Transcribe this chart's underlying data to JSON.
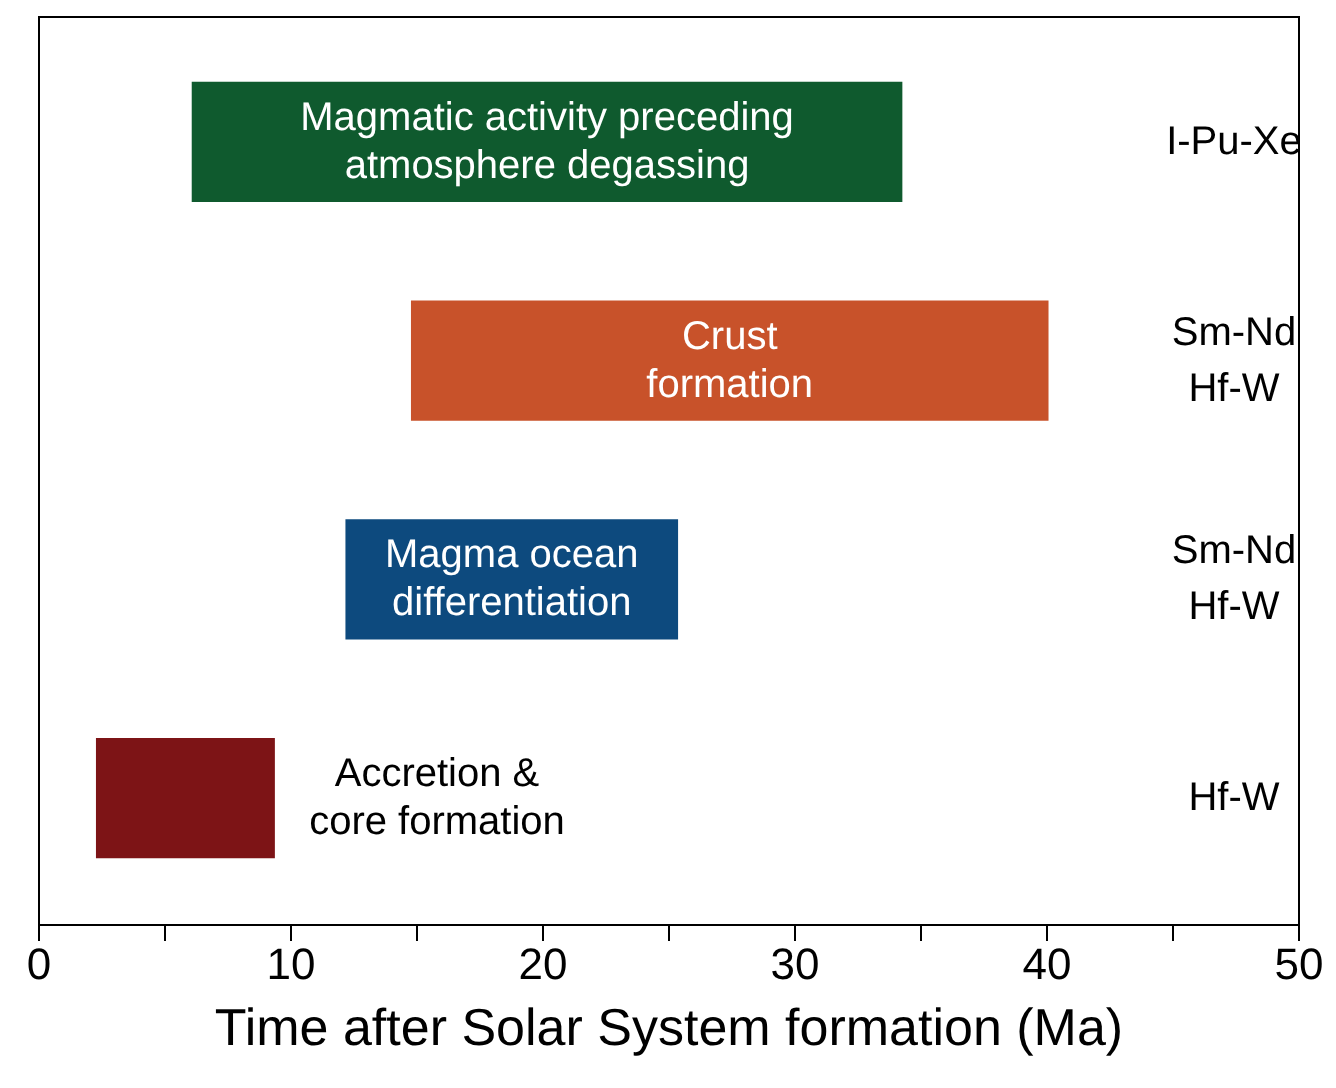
{
  "chart_data": {
    "type": "bar",
    "orientation": "horizontal",
    "xlabel": "Time after Solar System formation (Ma)",
    "categories": [
      null,
      null,
      null,
      null
    ],
    "base": [
      6.1,
      14.8,
      12.2,
      2.3
    ],
    "values": [
      28.2,
      25.3,
      13.2,
      7.1
    ],
    "colors": [
      "#0f5a2e",
      "#c8522a",
      "#0d4a7e",
      "#7d1416"
    ],
    "xlim": [
      0,
      50
    ],
    "xticks": [
      0,
      {
        "value": 5,
        "label": null
      },
      10,
      {
        "value": 15,
        "label": null
      },
      20,
      {
        "value": 25,
        "label": null
      },
      30,
      {
        "value": 35,
        "label": null
      },
      40,
      {
        "value": 45,
        "label": null
      },
      50
    ],
    "tick_labels": "x",
    "grid": false,
    "annotations": [
      "Magmatic activity preceding\natmosphere degassing",
      "Crust\nformation",
      "Magma ocean\ndifferentiation",
      "Accretion &\ncore formation",
      "I-Pu-Xe",
      "Sm-Nd\nHf-W",
      "Sm-Nd\nHf-W",
      "Hf-W"
    ]
  }
}
